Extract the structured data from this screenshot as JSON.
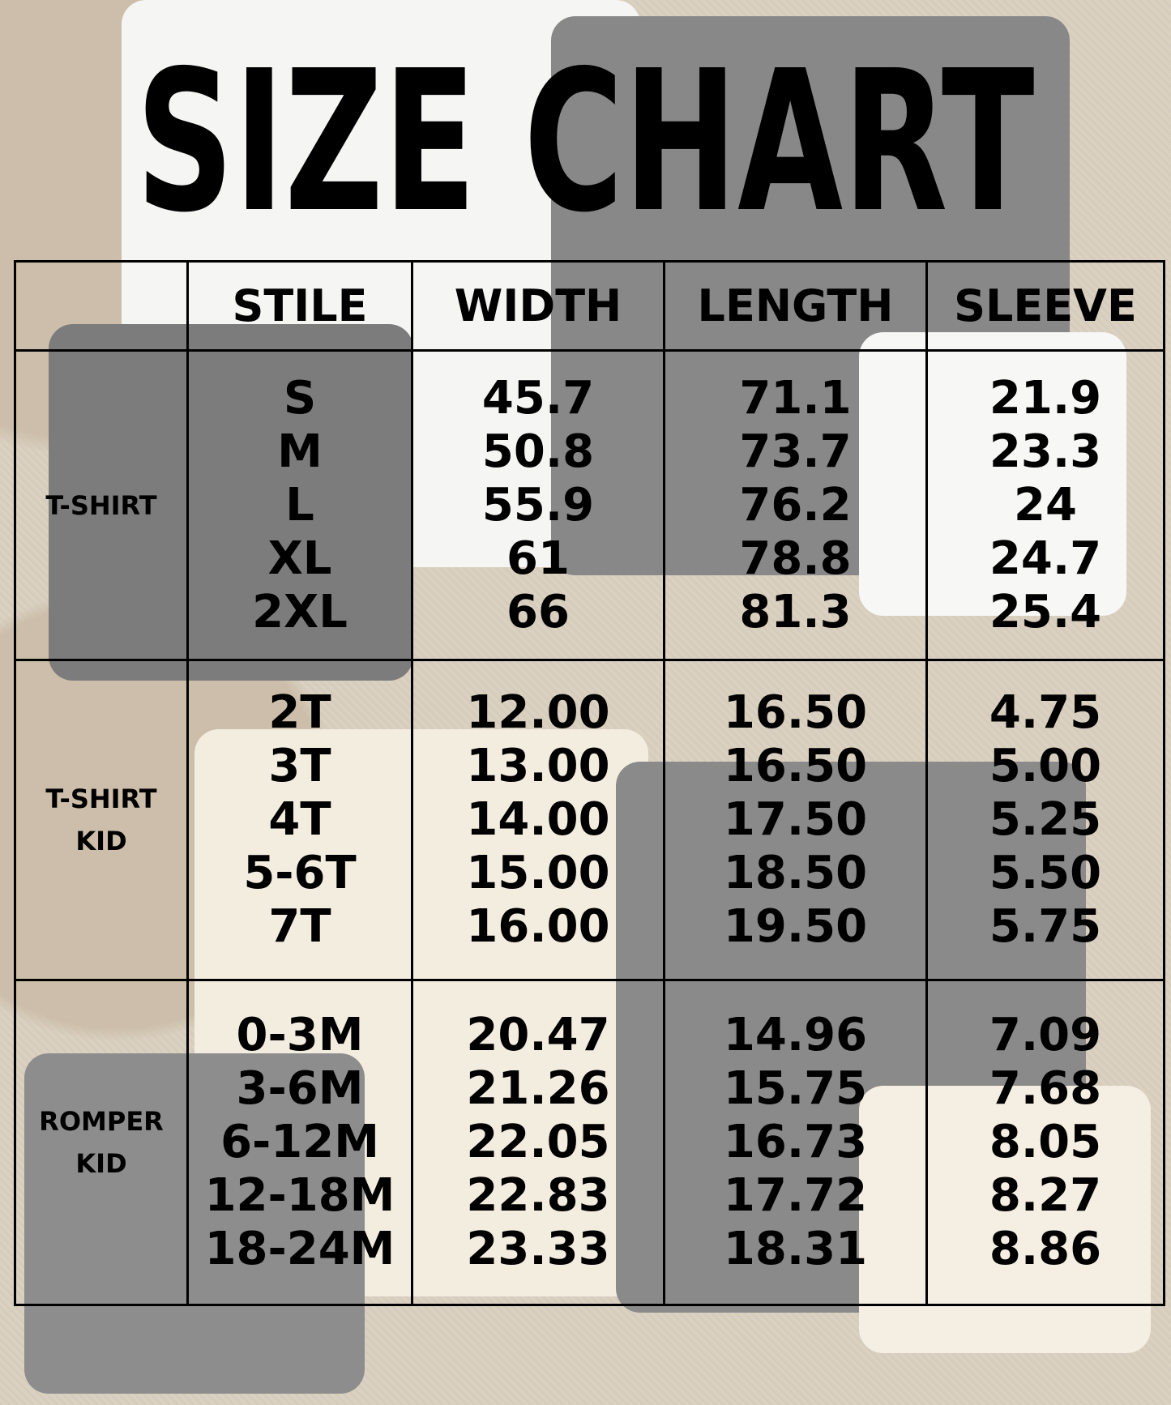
{
  "title": "SIZE CHART",
  "chart_data": {
    "type": "table",
    "title": "SIZE CHART",
    "columns": [
      "",
      "STILE",
      "WIDTH",
      "LENGTH",
      "SLEEVE"
    ],
    "groups": [
      {
        "label": "T-SHIRT",
        "sizes": [
          "S",
          "M",
          "L",
          "XL",
          "2XL"
        ],
        "width": [
          "45.7",
          "50.8",
          "55.9",
          "61",
          "66"
        ],
        "length": [
          "71.1",
          "73.7",
          "76.2",
          "78.8",
          "81.3"
        ],
        "sleeve": [
          "21.9",
          "23.3",
          "24",
          "24.7",
          "25.4"
        ]
      },
      {
        "label": "T-SHIRT KID",
        "sizes": [
          "2T",
          "3T",
          "4T",
          "5-6T",
          "7T"
        ],
        "width": [
          "12.00",
          "13.00",
          "14.00",
          "15.00",
          "16.00"
        ],
        "length": [
          "16.50",
          "16.50",
          "17.50",
          "18.50",
          "19.50"
        ],
        "sleeve": [
          "4.75",
          "5.00",
          "5.25",
          "5.50",
          "5.75"
        ]
      },
      {
        "label": "ROMPER KID",
        "sizes": [
          "0-3M",
          "3-6M",
          "6-12M",
          "12-18M",
          "18-24M"
        ],
        "width": [
          "20.47",
          "21.26",
          "22.05",
          "22.83",
          "23.33"
        ],
        "length": [
          "14.96",
          "15.75",
          "16.73",
          "17.72",
          "18.31"
        ],
        "sleeve": [
          "7.09",
          "7.68",
          "8.05",
          "8.27",
          "8.86"
        ]
      }
    ]
  }
}
